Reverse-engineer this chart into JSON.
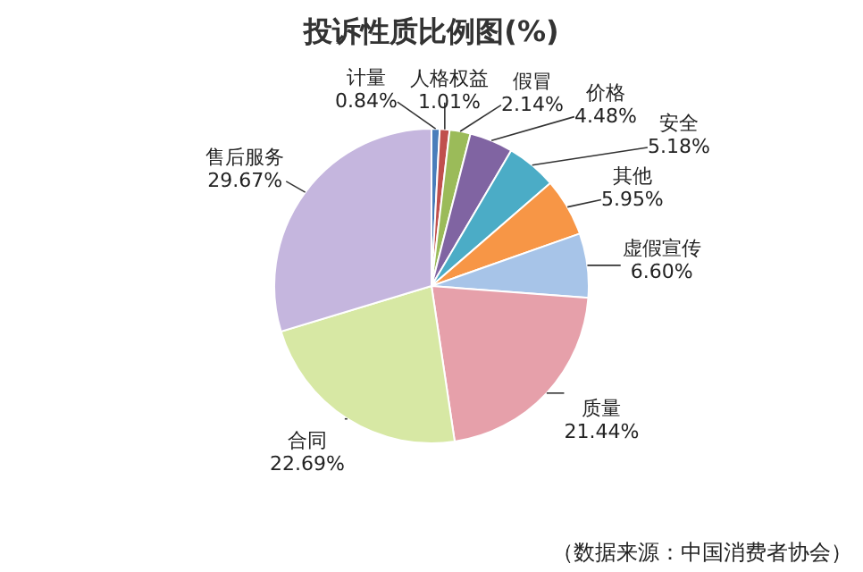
{
  "chart_data": {
    "type": "pie",
    "title": "投诉性质比例图(%)",
    "categories": [
      "计量",
      "人格权益",
      "假冒",
      "价格",
      "安全",
      "其他",
      "虚假宣传",
      "质量",
      "合同",
      "售后服务"
    ],
    "values": [
      0.84,
      1.01,
      2.14,
      4.48,
      5.18,
      5.95,
      6.6,
      21.44,
      22.69,
      29.67
    ],
    "colors": [
      "#4a7ebb",
      "#c0504d",
      "#9bbb59",
      "#8064a2",
      "#4bacc6",
      "#f79646",
      "#a7c4e8",
      "#e6a0aa",
      "#d7e8a4",
      "#c5b6de"
    ],
    "value_labels": [
      "0.84%",
      "1.01%",
      "2.14%",
      "4.48%",
      "5.18%",
      "5.95%",
      "6.60%",
      "21.44%",
      "22.69%",
      "29.67%"
    ],
    "annotations": [
      "（数据来源：中国消费者协会）"
    ]
  }
}
